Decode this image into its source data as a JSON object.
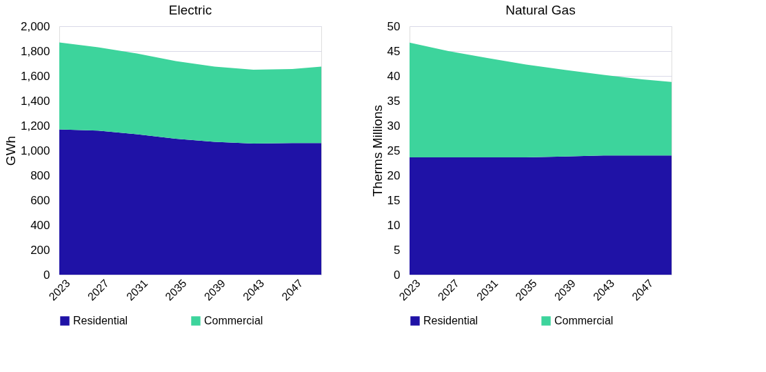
{
  "chart_data": [
    {
      "type": "area",
      "title": "Electric",
      "ylabel": "GWh",
      "stacked": true,
      "x": [
        2023,
        2027,
        2031,
        2035,
        2039,
        2043,
        2047,
        2050
      ],
      "xlim": [
        2023,
        2050
      ],
      "xticks": [
        2023,
        2027,
        2031,
        2035,
        2039,
        2043,
        2047
      ],
      "ylim": [
        0,
        2000
      ],
      "yticks": [
        0,
        200,
        400,
        600,
        800,
        {
          "value": 1000,
          "label": "1,000"
        },
        {
          "value": 1200,
          "label": "1,200"
        },
        {
          "value": 1400,
          "label": "1,400"
        },
        {
          "value": 1600,
          "label": "1,600"
        },
        {
          "value": 1800,
          "label": "1,800"
        },
        {
          "value": 2000,
          "label": "2,000"
        }
      ],
      "grid": "y",
      "legend": "bottom",
      "series": [
        {
          "name": "Residential",
          "color": "#1f12a6",
          "values": [
            1170,
            1160,
            1130,
            1095,
            1070,
            1055,
            1060,
            1060
          ]
        },
        {
          "name": "Commercial",
          "color": "#3dd49c",
          "values": [
            700,
            670,
            650,
            625,
            605,
            595,
            595,
            615
          ]
        }
      ]
    },
    {
      "type": "area",
      "title": "Natural Gas",
      "ylabel": "Therms  Millions",
      "stacked": true,
      "x": [
        2023,
        2027,
        2031,
        2035,
        2039,
        2043,
        2047,
        2050
      ],
      "xlim": [
        2023,
        2050
      ],
      "xticks": [
        2023,
        2027,
        2031,
        2035,
        2039,
        2043,
        2047
      ],
      "ylim": [
        0,
        50
      ],
      "yticks": [
        0,
        5,
        10,
        15,
        20,
        25,
        30,
        35,
        40,
        45,
        50
      ],
      "grid": "y",
      "legend": "bottom",
      "series": [
        {
          "name": "Residential",
          "color": "#1f12a6",
          "values": [
            23.6,
            23.6,
            23.6,
            23.6,
            23.8,
            24.0,
            24.0,
            24.0
          ]
        },
        {
          "name": "Commercial",
          "color": "#3dd49c",
          "values": [
            23.1,
            21.4,
            20.0,
            18.7,
            17.4,
            16.2,
            15.3,
            14.8
          ]
        }
      ]
    }
  ]
}
